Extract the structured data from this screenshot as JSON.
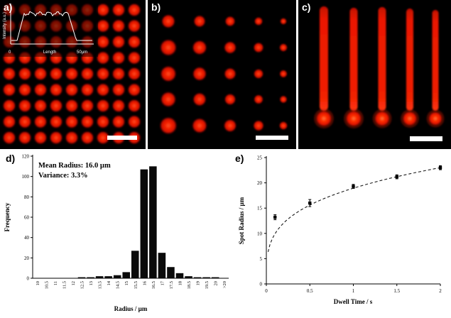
{
  "panels": {
    "a": {
      "label": "a)",
      "grid": {
        "rows": 9,
        "cols": 9
      },
      "inset": {
        "ylabel": "Intensity (a.u.)",
        "xlabel": "Length",
        "xmin_label": "0",
        "xmax_label": "50µm"
      }
    },
    "b": {
      "label": "b)",
      "grid": {
        "rows": 5,
        "cols": 5
      }
    },
    "c": {
      "label": "c)",
      "line_count": 5
    },
    "d": {
      "label": "d)"
    },
    "e": {
      "label": "e)"
    }
  },
  "colors": {
    "fluorescence_red": "#ee1500",
    "micrograph_background": "#000000",
    "bar_fill": "#0a0a0a",
    "scalebar_white": "#ffffff"
  },
  "chart_data": [
    {
      "type": "bar",
      "panel": "d",
      "xlabel": "Radius / µm",
      "ylabel": "Frequency",
      "ylim": [
        0,
        120
      ],
      "yticks": [
        0,
        20,
        40,
        60,
        80,
        100,
        120
      ],
      "categories": [
        "10",
        "10.5",
        "11",
        "11.5",
        "12",
        "12.5",
        "13",
        "13.5",
        "14",
        "14.5",
        "15",
        "15.5",
        "16",
        "16.5",
        "17",
        "17.5",
        "18",
        "18.5",
        "19",
        "19.5",
        "20",
        ">20"
      ],
      "values": [
        0,
        0,
        0,
        0,
        0,
        1,
        1,
        2,
        2,
        3,
        6,
        27,
        107,
        110,
        25,
        11,
        5,
        2,
        1,
        1,
        1,
        0
      ],
      "annotations": [
        "Mean Radius: 16.0 µm",
        "Variance: 3.3%"
      ],
      "grid": false,
      "legend": false
    },
    {
      "type": "scatter",
      "panel": "e",
      "xlabel": "Dwell Time / s",
      "ylabel": "Spot Radius / µm",
      "xlim": [
        0,
        2
      ],
      "ylim": [
        0,
        25
      ],
      "xticks": [
        0,
        0.5,
        1,
        1.5,
        2
      ],
      "yticks": [
        0,
        5,
        10,
        15,
        20,
        25
      ],
      "points": [
        {
          "x": 0.1,
          "y": 13.2,
          "yerr": 0.5
        },
        {
          "x": 0.5,
          "y": 16.0,
          "yerr": 0.7
        },
        {
          "x": 1.0,
          "y": 19.3,
          "yerr": 0.4
        },
        {
          "x": 1.5,
          "y": 21.2,
          "yerr": 0.4
        },
        {
          "x": 2.0,
          "y": 23.0,
          "yerr": 0.4
        }
      ],
      "fit_curve": {
        "style": "dashed",
        "model": "power",
        "scale": 23,
        "exponent": 0.28,
        "t_ref": 2
      },
      "grid": false,
      "legend": false
    }
  ]
}
